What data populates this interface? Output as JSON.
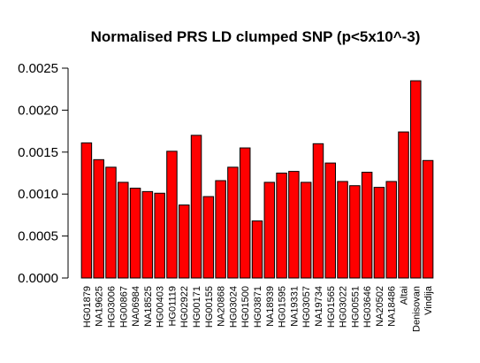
{
  "chart_data": {
    "type": "bar",
    "title": "Normalised PRS LD clumped SNP (p<5x10^-3)",
    "xlabel": "",
    "ylabel": "",
    "ylim": [
      0,
      0.0025
    ],
    "yticks": [
      "0.0000",
      "0.0005",
      "0.0010",
      "0.0015",
      "0.0020",
      "0.0025"
    ],
    "ytick_values": [
      0,
      0.0005,
      0.001,
      0.0015,
      0.002,
      0.0025
    ],
    "grid": false,
    "bar_color": "#ff0000",
    "bar_edge_color": "#000000",
    "categories": [
      "HG01879",
      "NA19625",
      "HG03006",
      "HG00867",
      "NA06984",
      "NA18525",
      "HG00403",
      "HG01119",
      "HG02922",
      "HG00171",
      "HG00155",
      "NA20868",
      "HG03024",
      "HG01500",
      "HG03871",
      "NA18939",
      "HG01595",
      "NA19331",
      "HG03057",
      "NA19734",
      "HG01565",
      "HG03022",
      "HG00551",
      "HG03646",
      "NA20502",
      "NA18486",
      "Altai",
      "Denisovan",
      "Vindija"
    ],
    "values": [
      0.00161,
      0.00141,
      0.00132,
      0.00114,
      0.00107,
      0.00103,
      0.00101,
      0.00151,
      0.00087,
      0.0017,
      0.00097,
      0.00116,
      0.00132,
      0.00155,
      0.00068,
      0.00114,
      0.00125,
      0.00127,
      0.00114,
      0.0016,
      0.00137,
      0.00115,
      0.0011,
      0.00126,
      0.00108,
      0.00115,
      0.00174,
      0.00235,
      0.0014
    ]
  }
}
